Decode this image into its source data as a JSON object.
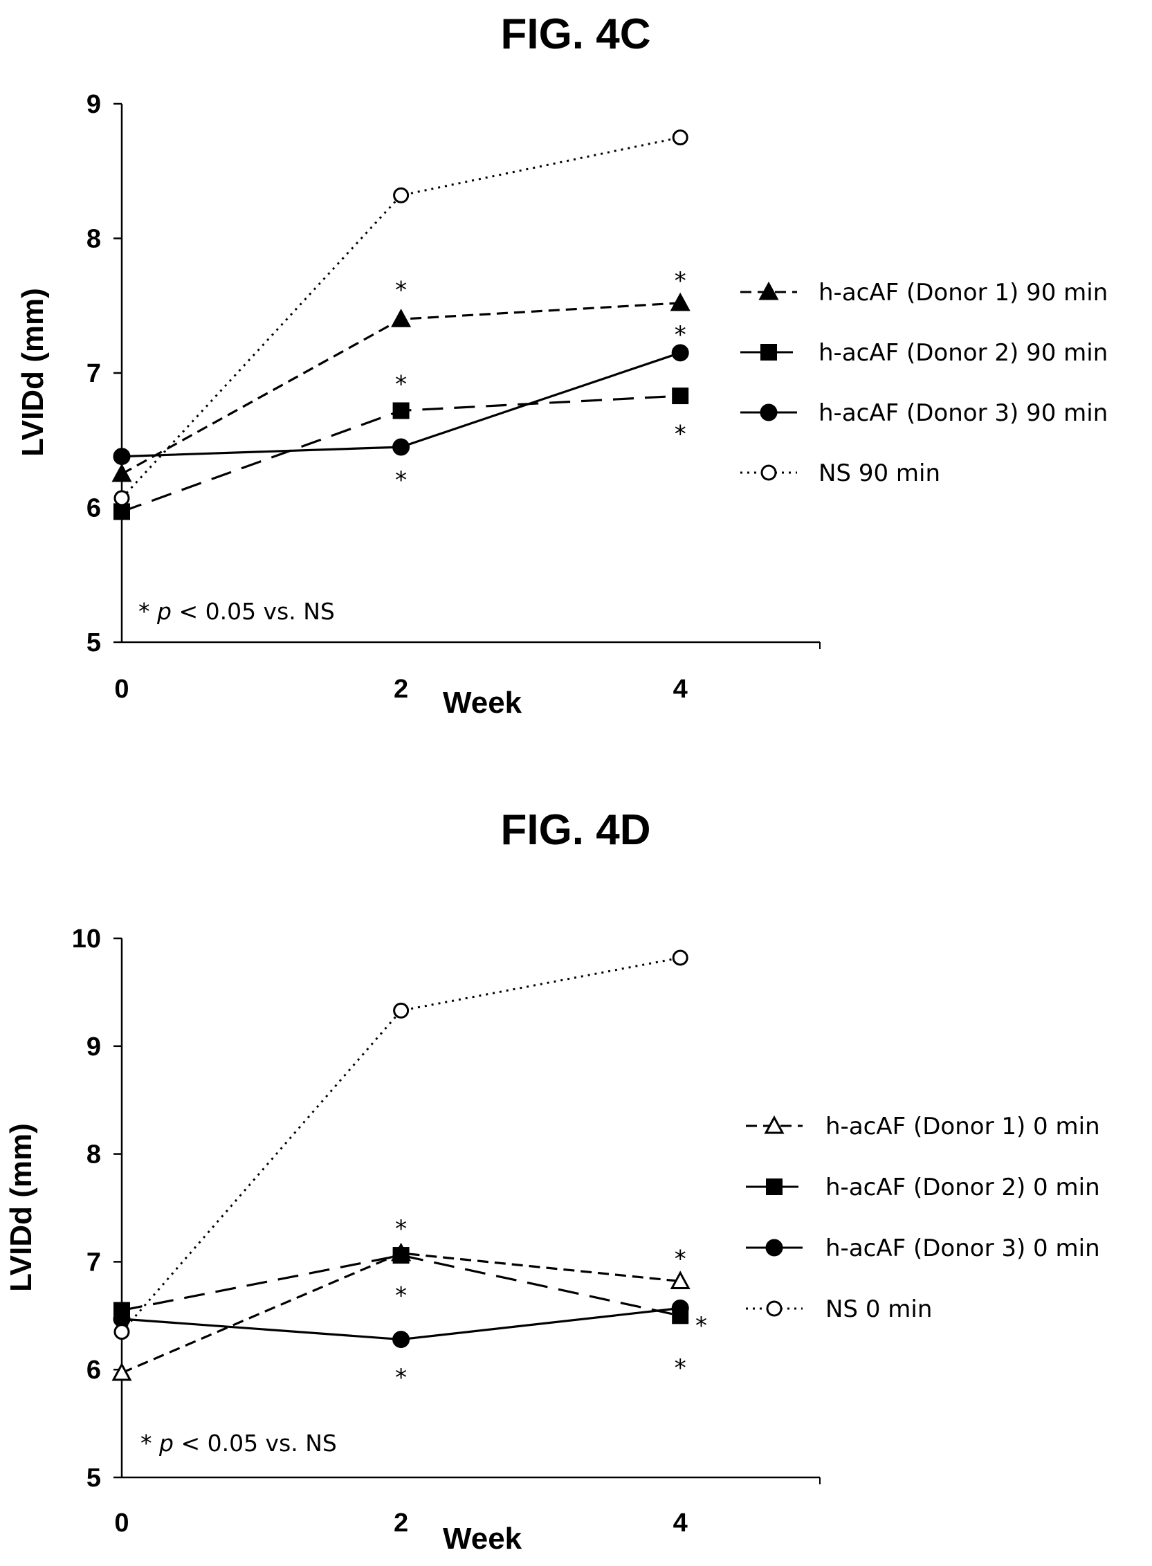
{
  "chart_data": [
    {
      "type": "line",
      "title": "FIG. 4C",
      "xlabel": "Week",
      "ylabel": "LVIDd (mm)",
      "x": [
        0,
        2,
        4
      ],
      "xlim": [
        0,
        5
      ],
      "ylim": [
        5,
        9
      ],
      "xticks": [
        "0",
        "2",
        "4"
      ],
      "yticks": [
        "5",
        "6",
        "7",
        "8",
        "9"
      ],
      "grid": false,
      "legend_position": "right",
      "series": [
        {
          "name": "h-acAF (Donor 1) 90 min",
          "marker": "filled-triangle",
          "line": "short-dash",
          "values": [
            6.25,
            7.4,
            7.52
          ]
        },
        {
          "name": "h-acAF (Donor 2) 90 min",
          "marker": "filled-square",
          "line": "long-dash",
          "values": [
            5.97,
            6.72,
            6.83
          ]
        },
        {
          "name": "h-acAF (Donor 3) 90 min",
          "marker": "filled-circle",
          "line": "solid",
          "values": [
            6.38,
            6.45,
            7.15
          ]
        },
        {
          "name": "NS 90 min",
          "marker": "open-circle",
          "line": "dotted",
          "values": [
            6.07,
            8.32,
            8.75
          ]
        }
      ],
      "annotations": [
        {
          "text": "*",
          "x": 2,
          "y": 7.65
        },
        {
          "text": "*",
          "x": 4,
          "y": 7.72
        },
        {
          "text": "*",
          "x": 2,
          "y": 6.95
        },
        {
          "text": "*",
          "x": 4,
          "y": 7.32
        },
        {
          "text": "*",
          "x": 2,
          "y": 6.24
        },
        {
          "text": "*",
          "x": 4,
          "y": 6.58
        }
      ],
      "note": {
        "prefix": "* ",
        "p": "p",
        "suffix": " < 0.05 vs. NS"
      }
    },
    {
      "type": "line",
      "title": "FIG. 4D",
      "xlabel": "Week",
      "ylabel": "LVIDd (mm)",
      "x": [
        0,
        2,
        4
      ],
      "xlim": [
        0,
        5
      ],
      "ylim": [
        5,
        10
      ],
      "xticks": [
        "0",
        "2",
        "4"
      ],
      "yticks": [
        "5",
        "6",
        "7",
        "8",
        "9",
        "10"
      ],
      "grid": false,
      "legend_position": "right",
      "series": [
        {
          "name": "h-acAF (Donor 1) 0 min",
          "marker": "open-triangle",
          "line": "short-dash",
          "values": [
            5.97,
            7.08,
            6.82
          ]
        },
        {
          "name": "h-acAF (Donor 2) 0 min",
          "marker": "filled-square",
          "line": "long-dash",
          "values": [
            6.55,
            7.06,
            6.5
          ]
        },
        {
          "name": "h-acAF (Donor 3) 0 min",
          "marker": "filled-circle",
          "line": "solid",
          "values": [
            6.47,
            6.28,
            6.57
          ]
        },
        {
          "name": "NS 0 min",
          "marker": "open-circle",
          "line": "dotted",
          "values": [
            6.35,
            9.33,
            9.82
          ]
        }
      ],
      "annotations": [
        {
          "text": "*",
          "x": 2,
          "y": 7.35
        },
        {
          "text": "*",
          "x": 4,
          "y": 7.07
        },
        {
          "text": "*",
          "x": 2,
          "y": 6.73
        },
        {
          "text": "*",
          "x": 4.15,
          "y": 6.45
        },
        {
          "text": "*",
          "x": 2,
          "y": 5.97
        },
        {
          "text": "*",
          "x": 4,
          "y": 6.06
        }
      ],
      "note": {
        "prefix": "* ",
        "p": "p",
        "suffix": " < 0.05 vs. NS"
      }
    }
  ]
}
